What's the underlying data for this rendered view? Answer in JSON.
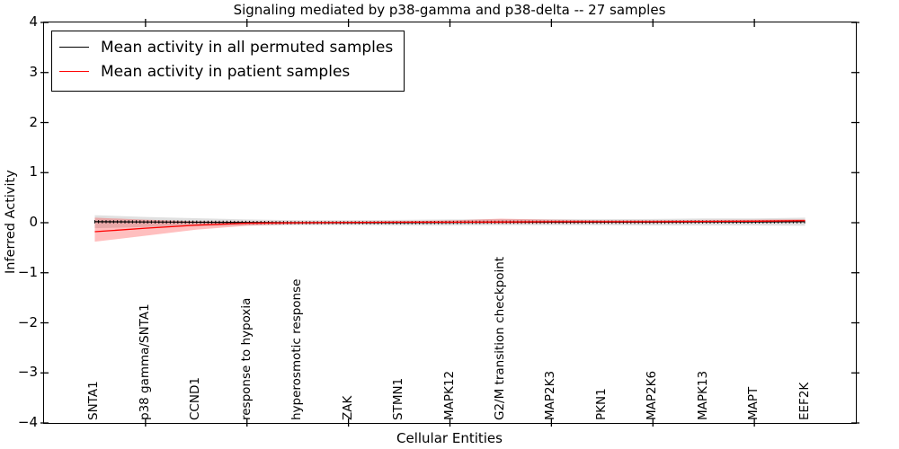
{
  "title": "Signaling mediated by p38-gamma and p38-delta -- 27 samples",
  "legend": {
    "items": [
      {
        "label": "Mean activity in all permuted samples",
        "color": "#000000"
      },
      {
        "label": "Mean activity in patient samples",
        "color": "#ff0000"
      }
    ]
  },
  "axes": {
    "xlabel": "Cellular Entities",
    "ylabel": "Inferred Activity",
    "ytick_labels": [
      "4",
      "3",
      "2",
      "1",
      "0",
      "−1",
      "−2",
      "−3",
      "−4"
    ]
  },
  "colors": {
    "permuted_line": "#000000",
    "patient_line": "#ff0000",
    "permuted_band": "rgba(0,0,0,0.12)",
    "patient_band": "rgba(255,0,0,0.25)",
    "spine": "#000000"
  },
  "chart_data": {
    "type": "line",
    "title": "Signaling mediated by p38-gamma and p38-delta -- 27 samples",
    "xlabel": "Cellular Entities",
    "ylabel": "Inferred Activity",
    "ylim": [
      -4,
      4
    ],
    "xlim": [
      -1,
      15
    ],
    "grid": false,
    "legend_position": "upper left",
    "categories": [
      "SNTA1",
      "p38 gamma/SNTA1",
      "CCND1",
      "response to hypoxia",
      "hyperosmotic response",
      "ZAK",
      "STMN1",
      "MAPK12",
      "G2/M transition checkpoint",
      "MAP2K3",
      "PKN1",
      "MAP2K6",
      "MAPK13",
      "MAPT",
      "EEF2K"
    ],
    "series": [
      {
        "name": "Mean activity in all permuted samples",
        "color": "#000000",
        "values": [
          0.02,
          0.015,
          0.01,
          0.005,
          0.0,
          0.0,
          0.0,
          0.005,
          0.01,
          0.01,
          0.01,
          0.01,
          0.015,
          0.015,
          0.02
        ],
        "band_half_width": [
          0.13,
          0.1,
          0.08,
          0.06,
          0.05,
          0.05,
          0.055,
          0.06,
          0.06,
          0.06,
          0.06,
          0.065,
          0.07,
          0.07,
          0.08
        ]
      },
      {
        "name": "Mean activity in patient samples",
        "color": "#ff0000",
        "values": [
          -0.18,
          -0.11,
          -0.05,
          -0.01,
          0.0,
          0.005,
          0.01,
          0.01,
          0.015,
          0.02,
          0.02,
          0.02,
          0.025,
          0.03,
          0.04
        ],
        "band_upper": [
          0.1,
          0.06,
          0.03,
          0.02,
          0.02,
          0.025,
          0.03,
          0.045,
          0.08,
          0.06,
          0.05,
          0.05,
          0.055,
          0.06,
          0.07
        ],
        "band_lower": [
          -0.38,
          -0.26,
          -0.14,
          -0.06,
          -0.03,
          -0.02,
          -0.01,
          -0.01,
          -0.02,
          -0.01,
          -0.005,
          -0.005,
          0.0,
          0.005,
          0.01
        ]
      }
    ]
  }
}
